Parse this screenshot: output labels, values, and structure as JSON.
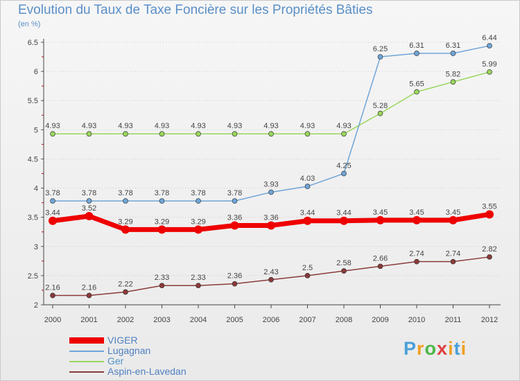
{
  "title": "Evolution du Taux de Taxe Foncière sur les Propriétés Bâties",
  "subtitle": "(en %)",
  "logo": {
    "letters": [
      "P",
      "r",
      "o",
      "x",
      "i",
      "t",
      "i"
    ],
    "colors": [
      "#4aa0d8",
      "#f0a020",
      "#4cb848",
      "#e04040",
      "#f0a020",
      "#4aa0d8",
      "#f0a020"
    ]
  },
  "chart_data": {
    "type": "line",
    "title": "Evolution du Taux de Taxe Foncière sur les Propriétés Bâties",
    "ylabel": "(en %)",
    "x": [
      "2000",
      "2001",
      "2002",
      "2003",
      "2004",
      "2005",
      "2006",
      "2007",
      "2008",
      "2009",
      "2010",
      "2011",
      "2012"
    ],
    "ylim": [
      2,
      6.5
    ],
    "yticks": [
      "2",
      "2.5",
      "3",
      "3.5",
      "4",
      "4.5",
      "5",
      "5.5",
      "6",
      "6.5"
    ],
    "grid": "horizontal dotted",
    "legend": "bottom-left",
    "series": [
      {
        "name": "Ger",
        "color": "#99d65c",
        "values": [
          4.93,
          4.93,
          4.93,
          4.93,
          4.93,
          4.93,
          4.93,
          4.93,
          4.93,
          5.28,
          5.65,
          5.82,
          5.99
        ],
        "labels": [
          "4.93",
          "4.93",
          "4.93",
          "4.93",
          "4.93",
          "4.93",
          "4.93",
          "4.93",
          "4.93",
          "5.28",
          "5.65",
          "5.82",
          "5.99"
        ]
      },
      {
        "name": "Lugagnan",
        "color": "#6fa5d8",
        "values": [
          3.78,
          3.78,
          3.78,
          3.78,
          3.78,
          3.78,
          3.93,
          4.03,
          4.25,
          6.25,
          6.31,
          6.31,
          6.44
        ],
        "labels": [
          "3.78",
          "3.78",
          "3.78",
          "3.78",
          "3.78",
          "3.78",
          "3.93",
          "4.03",
          "4.25",
          "6.25",
          "6.31",
          "6.31",
          "6.44"
        ]
      },
      {
        "name": "Aspin-en-Lavedan",
        "color": "#8b3a3a",
        "values": [
          2.16,
          2.16,
          2.22,
          2.33,
          2.33,
          2.36,
          2.43,
          2.5,
          2.58,
          2.66,
          2.74,
          2.74,
          2.82
        ],
        "labels": [
          "2.16",
          "2.16",
          "2.22",
          "2.33",
          "2.33",
          "2.36",
          "2.43",
          "2.5",
          "2.58",
          "2.66",
          "2.74",
          "2.74",
          "2.82"
        ]
      },
      {
        "name": "VIGER",
        "color": "#ee0000",
        "values": [
          3.44,
          3.52,
          3.29,
          3.29,
          3.29,
          3.36,
          3.36,
          3.44,
          3.44,
          3.45,
          3.45,
          3.45,
          3.55
        ],
        "labels": [
          "3.44",
          "3.52",
          "3.29",
          "3.29",
          "3.29",
          "3.36",
          "3.36",
          "3.44",
          "3.44",
          "3.45",
          "3.45",
          "3.45",
          "3.55"
        ]
      }
    ],
    "legend_order": [
      "VIGER",
      "Lugagnan",
      "Ger",
      "Aspin-en-Lavedan"
    ],
    "legend_colors": {
      "VIGER": "#ee0000",
      "Lugagnan": "#6fa5d8",
      "Ger": "#99d65c",
      "Aspin-en-Lavedan": "#8b3a3a"
    }
  }
}
